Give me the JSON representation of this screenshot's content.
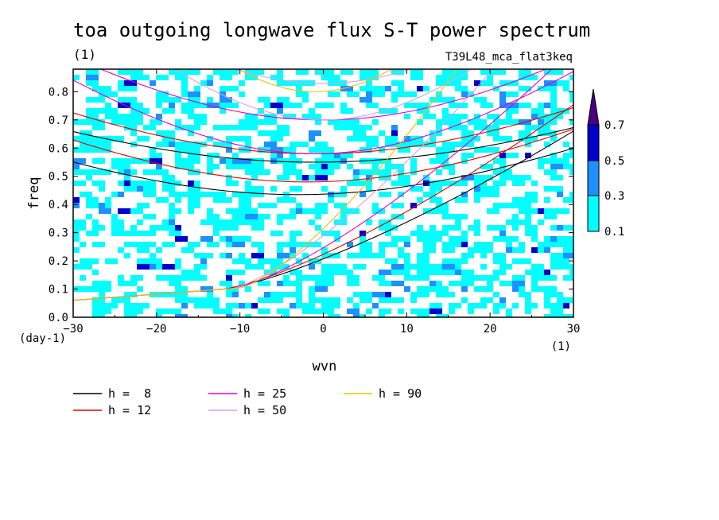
{
  "chart_data": {
    "type": "heatmap",
    "title": "toa outgoing longwave flux S-T power spectrum",
    "units": "(1)",
    "run_label": "T39L48_mca_flat3keq",
    "xlabel": "wvn",
    "ylabel": "freq",
    "x_unit": "(1)",
    "y_unit": "(day-1)",
    "xlim": [
      -30,
      30
    ],
    "ylim": [
      0,
      0.88
    ],
    "xticks": [
      -30,
      -20,
      -10,
      0,
      10,
      20,
      30
    ],
    "yticks": [
      0.0,
      0.1,
      0.2,
      0.3,
      0.4,
      0.5,
      0.6,
      0.7,
      0.8
    ],
    "xtick_labels": [
      "−30",
      "−20",
      "−10",
      "0",
      "10",
      "20",
      "30"
    ],
    "ytick_labels": [
      "0.0",
      "0.1",
      "0.2",
      "0.3",
      "0.4",
      "0.5",
      "0.6",
      "0.7",
      "0.8"
    ],
    "contour_levels": [
      0.1,
      0.3,
      0.5,
      0.7
    ],
    "colorbar": {
      "labels": [
        "0.1",
        "0.3",
        "0.5",
        "0.7"
      ],
      "colors": [
        "#00ffff",
        "#1e90ff",
        "#0000cd",
        "#4b0082"
      ]
    },
    "dispersion_curves": [
      {
        "name": "h =  8",
        "h": 8,
        "color": "#000000"
      },
      {
        "name": "h = 12",
        "h": 12,
        "color": "#e00000"
      },
      {
        "name": "h = 25",
        "h": 25,
        "color": "#e000d0"
      },
      {
        "name": "h = 50",
        "h": 50,
        "color": "#d8a0e8"
      },
      {
        "name": "h = 90",
        "h": 90,
        "color": "#f0c000"
      }
    ],
    "curve_family_fits": [
      {
        "h": 8,
        "bottom_n1": [
          -3,
          0.435
        ],
        "bottom_n2": [
          -1,
          0.55
        ]
      },
      {
        "h": 12,
        "bottom_n1": [
          -2,
          0.48
        ],
        "bottom_n2": [
          -1,
          0.58
        ]
      },
      {
        "h": 25,
        "bottom_n1": [
          -1,
          0.58
        ],
        "bottom_n2": [
          0,
          0.7
        ]
      },
      {
        "h": 50,
        "bottom_n1": [
          0,
          0.7
        ],
        "bottom_n2": [
          0,
          0.83
        ]
      },
      {
        "h": 90,
        "bottom_n1": [
          -1,
          0.8
        ],
        "bottom_n2": null
      }
    ]
  },
  "legend": [
    {
      "label": "h =  8",
      "color": "#000000"
    },
    {
      "label": "h = 12",
      "color": "#e00000"
    },
    {
      "label": "h = 25",
      "color": "#e000d0"
    },
    {
      "label": "h = 50",
      "color": "#d8a0e8"
    },
    {
      "label": "h = 90",
      "color": "#f0c000"
    }
  ]
}
